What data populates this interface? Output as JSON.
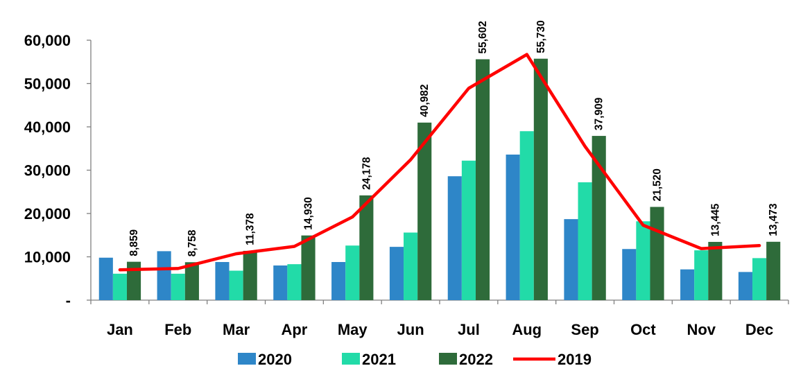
{
  "chart_data": {
    "type": "bar",
    "categories": [
      "Jan",
      "Feb",
      "Mar",
      "Apr",
      "May",
      "Jun",
      "Jul",
      "Aug",
      "Sep",
      "Oct",
      "Nov",
      "Dec"
    ],
    "series": [
      {
        "name": "2020",
        "kind": "bar",
        "color": "#2E86C8",
        "values": [
          9800,
          11300,
          8800,
          8000,
          8800,
          12300,
          28600,
          33600,
          18700,
          11800,
          7100,
          6500
        ]
      },
      {
        "name": "2021",
        "kind": "bar",
        "color": "#22DBA8",
        "values": [
          6100,
          6100,
          6800,
          8300,
          12600,
          15600,
          32200,
          39000,
          27200,
          18200,
          11500,
          9700
        ]
      },
      {
        "name": "2022",
        "kind": "bar",
        "color": "#2E6B3A",
        "values": [
          8859,
          8758,
          11378,
          14930,
          24178,
          40982,
          55602,
          55730,
          37909,
          21520,
          13445,
          13473
        ]
      },
      {
        "name": "2019",
        "kind": "line",
        "color": "#FF0000",
        "values": [
          7000,
          7300,
          10700,
          12400,
          19200,
          32400,
          48900,
          56700,
          35500,
          17300,
          11900,
          12600
        ]
      }
    ],
    "data_labels": [
      "8,859",
      "8,758",
      "11,378",
      "14,930",
      "24,178",
      "40,982",
      "55,602",
      "55,730",
      "37,909",
      "21,520",
      "13,445",
      "13,473"
    ],
    "y_ticks": [
      {
        "value": 0,
        "label": "-"
      },
      {
        "value": 10000,
        "label": "10,000"
      },
      {
        "value": 20000,
        "label": "20,000"
      },
      {
        "value": 30000,
        "label": "30,000"
      },
      {
        "value": 40000,
        "label": "40,000"
      },
      {
        "value": 50000,
        "label": "50,000"
      },
      {
        "value": 60000,
        "label": "60,000"
      }
    ],
    "ylim": [
      0,
      60000
    ],
    "grid": false,
    "legend_position": "bottom",
    "legend": [
      "2020",
      "2021",
      "2022",
      "2019"
    ],
    "title": "",
    "xlabel": "",
    "ylabel": ""
  }
}
